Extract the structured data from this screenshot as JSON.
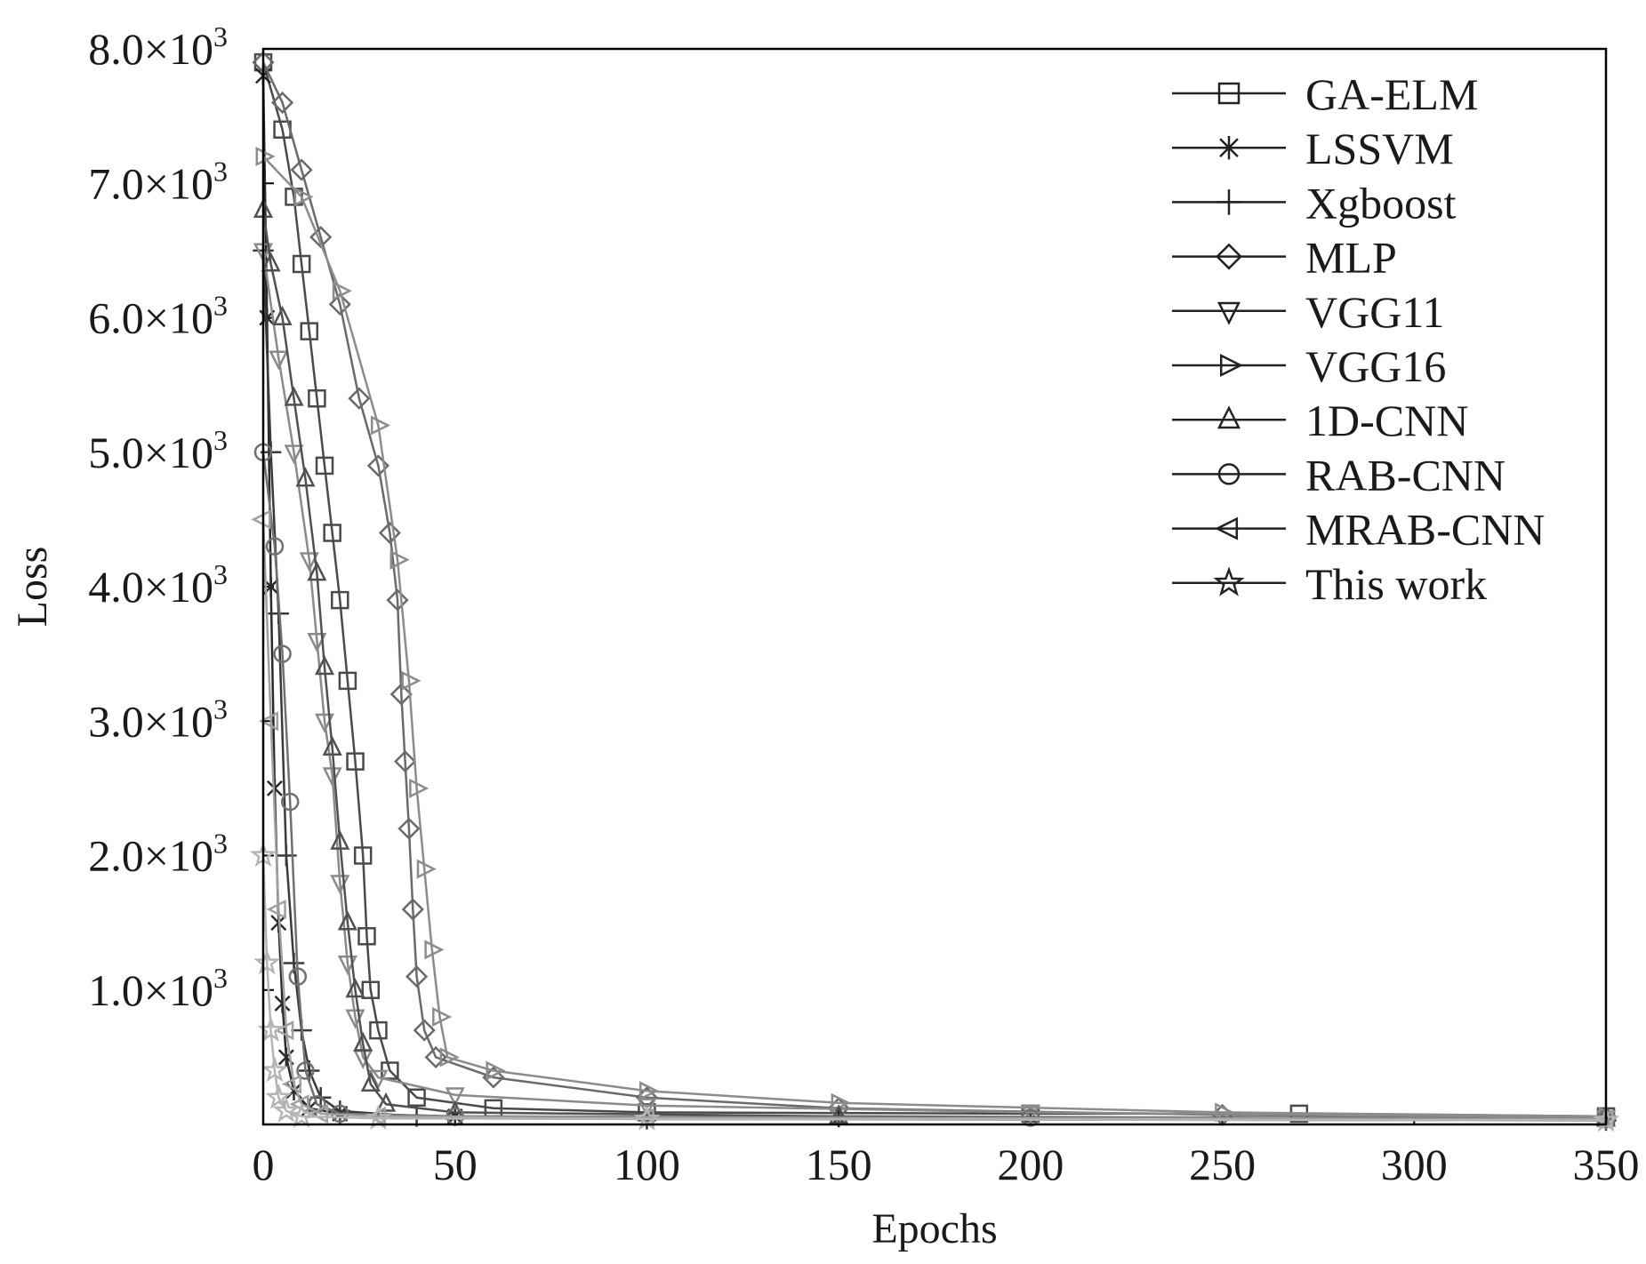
{
  "chart_data": {
    "type": "line",
    "xlabel": "Epochs",
    "ylabel": "Loss",
    "xlim": [
      0,
      350
    ],
    "ylim": [
      0,
      8000
    ],
    "x_ticks": [
      0,
      50,
      100,
      150,
      200,
      250,
      300,
      350
    ],
    "x_tick_labels": [
      "0",
      "50",
      "100",
      "150",
      "200",
      "250",
      "300",
      "350"
    ],
    "y_ticks": [
      1000,
      2000,
      3000,
      4000,
      5000,
      6000,
      7000,
      8000
    ],
    "y_tick_mantissas": [
      "1.0",
      "2.0",
      "3.0",
      "4.0",
      "5.0",
      "6.0",
      "7.0",
      "8.0"
    ],
    "y_tick_base": "×10",
    "y_tick_exponent": "3",
    "grid": false,
    "legend_position": "top-right",
    "series": [
      {
        "name": "GA-ELM",
        "marker": "square",
        "color": "#4a4a4a",
        "points": [
          [
            0,
            7900
          ],
          [
            5,
            7400
          ],
          [
            8,
            6900
          ],
          [
            10,
            6400
          ],
          [
            12,
            5900
          ],
          [
            14,
            5400
          ],
          [
            16,
            4900
          ],
          [
            18,
            4400
          ],
          [
            20,
            3900
          ],
          [
            22,
            3300
          ],
          [
            24,
            2700
          ],
          [
            26,
            2000
          ],
          [
            27,
            1400
          ],
          [
            28,
            1000
          ],
          [
            30,
            700
          ],
          [
            33,
            400
          ],
          [
            40,
            200
          ],
          [
            60,
            120
          ],
          [
            100,
            90
          ],
          [
            200,
            80
          ],
          [
            270,
            80
          ],
          [
            350,
            60
          ]
        ]
      },
      {
        "name": "LSSVM",
        "marker": "asterisk",
        "color": "#2a2a2a",
        "points": [
          [
            0,
            7800
          ],
          [
            1,
            6000
          ],
          [
            2,
            4000
          ],
          [
            3,
            2500
          ],
          [
            4,
            1500
          ],
          [
            5,
            900
          ],
          [
            6,
            500
          ],
          [
            8,
            250
          ],
          [
            12,
            120
          ],
          [
            20,
            80
          ],
          [
            50,
            60
          ],
          [
            150,
            50
          ],
          [
            350,
            40
          ]
        ]
      },
      {
        "name": "Xgboost",
        "marker": "plus",
        "color": "#3a3a3a",
        "points": [
          [
            0,
            6500
          ],
          [
            2,
            5000
          ],
          [
            4,
            3800
          ],
          [
            6,
            2000
          ],
          [
            8,
            1200
          ],
          [
            10,
            700
          ],
          [
            12,
            400
          ],
          [
            15,
            200
          ],
          [
            20,
            100
          ],
          [
            40,
            60
          ],
          [
            100,
            40
          ],
          [
            350,
            30
          ]
        ]
      },
      {
        "name": "MLP",
        "marker": "diamond",
        "color": "#6a6a6a",
        "points": [
          [
            0,
            7900
          ],
          [
            5,
            7600
          ],
          [
            10,
            7100
          ],
          [
            15,
            6600
          ],
          [
            20,
            6100
          ],
          [
            25,
            5400
          ],
          [
            30,
            4900
          ],
          [
            33,
            4400
          ],
          [
            35,
            3900
          ],
          [
            36,
            3200
          ],
          [
            37,
            2700
          ],
          [
            38,
            2200
          ],
          [
            39,
            1600
          ],
          [
            40,
            1100
          ],
          [
            42,
            700
          ],
          [
            45,
            500
          ],
          [
            60,
            350
          ],
          [
            100,
            200
          ],
          [
            150,
            120
          ],
          [
            250,
            70
          ],
          [
            350,
            50
          ]
        ]
      },
      {
        "name": "VGG11",
        "marker": "triangle-down",
        "color": "#8a8a8a",
        "points": [
          [
            0,
            6500
          ],
          [
            4,
            5700
          ],
          [
            8,
            5000
          ],
          [
            12,
            4200
          ],
          [
            14,
            3600
          ],
          [
            16,
            3000
          ],
          [
            18,
            2600
          ],
          [
            20,
            1800
          ],
          [
            22,
            1200
          ],
          [
            24,
            800
          ],
          [
            26,
            500
          ],
          [
            30,
            350
          ],
          [
            50,
            220
          ],
          [
            100,
            140
          ],
          [
            200,
            90
          ],
          [
            350,
            50
          ]
        ]
      },
      {
        "name": "VGG16",
        "marker": "triangle-right",
        "color": "#8c8c8c",
        "points": [
          [
            0,
            7200
          ],
          [
            10,
            6900
          ],
          [
            20,
            6200
          ],
          [
            30,
            5200
          ],
          [
            35,
            4200
          ],
          [
            38,
            3300
          ],
          [
            40,
            2500
          ],
          [
            42,
            1900
          ],
          [
            44,
            1300
          ],
          [
            46,
            800
          ],
          [
            48,
            500
          ],
          [
            60,
            400
          ],
          [
            100,
            250
          ],
          [
            150,
            160
          ],
          [
            250,
            90
          ],
          [
            350,
            60
          ]
        ]
      },
      {
        "name": "1D-CNN",
        "marker": "triangle-up",
        "color": "#505050",
        "points": [
          [
            0,
            6800
          ],
          [
            2,
            6400
          ],
          [
            5,
            6000
          ],
          [
            8,
            5400
          ],
          [
            11,
            4800
          ],
          [
            14,
            4100
          ],
          [
            16,
            3400
          ],
          [
            18,
            2800
          ],
          [
            20,
            2100
          ],
          [
            22,
            1500
          ],
          [
            24,
            1000
          ],
          [
            26,
            600
          ],
          [
            28,
            300
          ],
          [
            32,
            150
          ],
          [
            50,
            90
          ],
          [
            150,
            60
          ],
          [
            350,
            40
          ]
        ]
      },
      {
        "name": "RAB-CNN",
        "marker": "circle",
        "color": "#707070",
        "points": [
          [
            0,
            5000
          ],
          [
            3,
            4300
          ],
          [
            5,
            3500
          ],
          [
            7,
            2400
          ],
          [
            9,
            1100
          ],
          [
            11,
            400
          ],
          [
            14,
            150
          ],
          [
            20,
            80
          ],
          [
            50,
            60
          ],
          [
            200,
            50
          ],
          [
            350,
            40
          ]
        ]
      },
      {
        "name": "MRAB-CNN",
        "marker": "triangle-left",
        "color": "#a0a0a0",
        "points": [
          [
            0,
            4500
          ],
          [
            2,
            3000
          ],
          [
            4,
            1600
          ],
          [
            6,
            700
          ],
          [
            8,
            300
          ],
          [
            10,
            150
          ],
          [
            15,
            80
          ],
          [
            30,
            60
          ],
          [
            100,
            50
          ],
          [
            350,
            40
          ]
        ]
      },
      {
        "name": "This work",
        "marker": "star",
        "color": "#b4b4b4",
        "points": [
          [
            0,
            2000
          ],
          [
            1,
            1200
          ],
          [
            2,
            700
          ],
          [
            3,
            400
          ],
          [
            4,
            200
          ],
          [
            6,
            100
          ],
          [
            10,
            60
          ],
          [
            30,
            45
          ],
          [
            100,
            40
          ],
          [
            350,
            30
          ]
        ]
      }
    ]
  }
}
